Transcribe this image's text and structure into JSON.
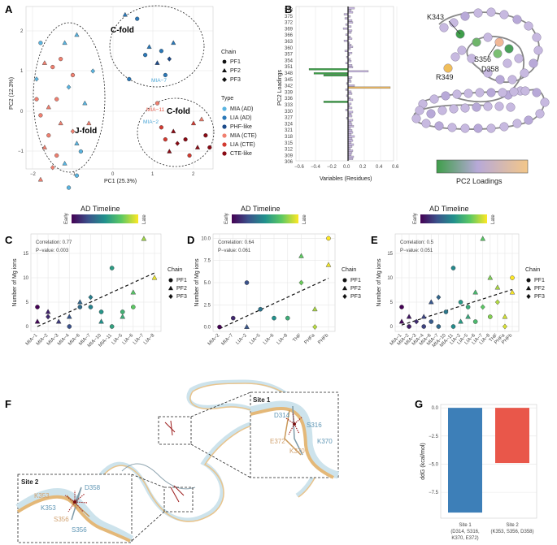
{
  "panel_labels": {
    "A": "A",
    "B": "B",
    "C": "C",
    "D": "D",
    "E": "E",
    "F": "F",
    "G": "G"
  },
  "panelA": {
    "xlabel": "PC1 (25.3%)",
    "ylabel": "PC2 (12.3%)",
    "xticks": [
      "−2",
      "−1",
      "0",
      "1",
      "2"
    ],
    "yticks": [
      "2",
      "1",
      "0",
      "−1"
    ],
    "clusters": [
      {
        "label": "J-fold"
      },
      {
        "label": "C-fold"
      },
      {
        "label": "C-fold"
      }
    ],
    "annotations": [
      {
        "text": "MIA−7",
        "color": "#4ba6d6"
      },
      {
        "text": "MIA−11",
        "color": "#e05a4a"
      },
      {
        "text": "MIA−2",
        "color": "#4ba6d6"
      }
    ],
    "legend_chain_title": "Chain",
    "legend_chain": [
      "PF1",
      "PF2",
      "PF3"
    ],
    "legend_type_title": "Type",
    "legend_type": [
      {
        "label": "MIA (AD)",
        "color": "#5ab4e0"
      },
      {
        "label": "LIA (AD)",
        "color": "#2a78b8"
      },
      {
        "label": "PHF-like",
        "color": "#1c4a8a"
      },
      {
        "label": "MIA (CTE)",
        "color": "#f08070"
      },
      {
        "label": "LIA (CTE)",
        "color": "#d23a30"
      },
      {
        "label": "CTE-like",
        "color": "#8a0a14"
      }
    ]
  },
  "panelB": {
    "ylabel": "PC2 Loadings",
    "xlabel": "Variables (Residues)",
    "xticks": [
      "−0.6",
      "−0.4",
      "−0.2",
      "0.0",
      "0.2",
      "0.4",
      "0.6"
    ],
    "yticks": [
      "378",
      "375",
      "372",
      "369",
      "366",
      "363",
      "360",
      "357",
      "354",
      "351",
      "348",
      "345",
      "342",
      "339",
      "336",
      "333",
      "330",
      "327",
      "324",
      "321",
      "318",
      "315",
      "312",
      "309",
      "306"
    ]
  },
  "structure_labels": [
    "K343",
    "S356",
    "D358",
    "R349"
  ],
  "colorbar_label": "PC2 Loadings",
  "timeline": {
    "title": "AD Timeline",
    "early": "Early",
    "late": "Late"
  },
  "chart_data": [
    {
      "type": "scatter",
      "panel": "C",
      "ylabel": "Number of Mg ions",
      "correlation": "Correlation: 0.77",
      "pvalue": "P−value: 0.003",
      "categories": [
        "MIA−1",
        "MIA−2",
        "MIA−3",
        "MIA−4",
        "MIA−6",
        "MIA−7",
        "MIA−10",
        "MIA−11",
        "LIA−5",
        "LIA−6",
        "LIA−7",
        "LIA−8"
      ],
      "yticks": [
        "0",
        "5",
        "10",
        "15"
      ],
      "ylim": [
        -1,
        19
      ],
      "legend_title": "Chain",
      "legend": [
        "PF1",
        "PF2",
        "PF3"
      ],
      "points": [
        {
          "x": 0,
          "y": 4,
          "s": "c",
          "t": 0.0
        },
        {
          "x": 0,
          "y": 1,
          "s": "t",
          "t": 0.02
        },
        {
          "x": 1,
          "y": 3,
          "s": "t",
          "t": 0.1
        },
        {
          "x": 1,
          "y": 2,
          "s": "d",
          "t": 0.12
        },
        {
          "x": 2,
          "y": 1,
          "s": "t",
          "t": 0.18
        },
        {
          "x": 3,
          "y": 0,
          "s": "c",
          "t": 0.25
        },
        {
          "x": 3,
          "y": 2,
          "s": "t",
          "t": 0.27
        },
        {
          "x": 4,
          "y": 5,
          "s": "t",
          "t": 0.33
        },
        {
          "x": 4,
          "y": 4,
          "s": "c",
          "t": 0.35
        },
        {
          "x": 5,
          "y": 6,
          "s": "d",
          "t": 0.42
        },
        {
          "x": 5,
          "y": 4,
          "s": "c",
          "t": 0.44
        },
        {
          "x": 6,
          "y": 1,
          "s": "t",
          "t": 0.5
        },
        {
          "x": 6,
          "y": 3,
          "s": "c",
          "t": 0.52
        },
        {
          "x": 7,
          "y": 12,
          "s": "c",
          "t": 0.55
        },
        {
          "x": 7,
          "y": 0,
          "s": "c",
          "t": 0.57
        },
        {
          "x": 8,
          "y": 2,
          "s": "t",
          "t": 0.62
        },
        {
          "x": 8,
          "y": 3,
          "s": "c",
          "t": 0.64
        },
        {
          "x": 9,
          "y": 7,
          "s": "t",
          "t": 0.72
        },
        {
          "x": 9,
          "y": 4,
          "s": "c",
          "t": 0.74
        },
        {
          "x": 10,
          "y": 18,
          "s": "t",
          "t": 0.85
        },
        {
          "x": 11,
          "y": 10,
          "s": "t",
          "t": 0.97
        }
      ],
      "trend": [
        [
          0,
          0
        ],
        [
          11,
          11
        ]
      ]
    },
    {
      "type": "scatter",
      "panel": "D",
      "ylabel": "Number of Mg ions",
      "correlation": "Correlation: 0.64",
      "pvalue": "P−value: 0.061",
      "categories": [
        "MIA−2",
        "MIA−7",
        "LIA−2",
        "LIA−5",
        "LIA−6",
        "LIA−8",
        "THF",
        "PHFa",
        "PHFb"
      ],
      "yticks": [
        "0.0",
        "2.5",
        "5.0",
        "7.5",
        "10.0"
      ],
      "ylim": [
        -0.5,
        10.5
      ],
      "legend_title": "Chain",
      "legend": [
        "PF1",
        "PF2",
        "PF3"
      ],
      "points": [
        {
          "x": 0,
          "y": 0,
          "s": "c",
          "t": 0.0
        },
        {
          "x": 1,
          "y": 1,
          "s": "c",
          "t": 0.12
        },
        {
          "x": 2,
          "y": 5,
          "s": "c",
          "t": 0.25
        },
        {
          "x": 2,
          "y": 0,
          "s": "t",
          "t": 0.27
        },
        {
          "x": 3,
          "y": 2,
          "s": "c",
          "t": 0.38
        },
        {
          "x": 4,
          "y": 1,
          "s": "c",
          "t": 0.5
        },
        {
          "x": 5,
          "y": 1,
          "s": "c",
          "t": 0.62
        },
        {
          "x": 6,
          "y": 8,
          "s": "t",
          "t": 0.75
        },
        {
          "x": 6,
          "y": 5,
          "s": "d",
          "t": 0.77
        },
        {
          "x": 7,
          "y": 2,
          "s": "t",
          "t": 0.87
        },
        {
          "x": 7,
          "y": 0,
          "s": "d",
          "t": 0.89
        },
        {
          "x": 8,
          "y": 10,
          "s": "c",
          "t": 1.0
        },
        {
          "x": 8,
          "y": 7,
          "s": "t",
          "t": 0.98
        }
      ],
      "trend": [
        [
          0,
          -0.2
        ],
        [
          8,
          5.5
        ]
      ]
    },
    {
      "type": "scatter",
      "panel": "E",
      "ylabel": "Number of Mg ions",
      "correlation": "Correlation: 0.5",
      "pvalue": "P−value: 0.051",
      "categories": [
        "MIA−1",
        "MIA−2",
        "MIA−3",
        "MIA−4",
        "MIA−6",
        "MIA−7",
        "MIA−10",
        "MIA−11",
        "LIA−2",
        "LIA−5",
        "LIA−6",
        "LIA−7",
        "LIA−8",
        "THF",
        "PHFa",
        "PHFb"
      ],
      "yticks": [
        "0",
        "5",
        "10",
        "15"
      ],
      "ylim": [
        -1,
        19
      ],
      "legend_title": "Chain",
      "legend": [
        "PF1",
        "PF2",
        "PF3"
      ],
      "points": [
        {
          "x": 0,
          "y": 4,
          "s": "c",
          "t": 0.0
        },
        {
          "x": 0,
          "y": 1,
          "s": "t",
          "t": 0.02
        },
        {
          "x": 1,
          "y": 2,
          "s": "t",
          "t": 0.07
        },
        {
          "x": 1,
          "y": 0,
          "s": "c",
          "t": 0.08
        },
        {
          "x": 2,
          "y": 1,
          "s": "d",
          "t": 0.13
        },
        {
          "x": 3,
          "y": 0,
          "s": "c",
          "t": 0.2
        },
        {
          "x": 3,
          "y": 2,
          "s": "t",
          "t": 0.21
        },
        {
          "x": 4,
          "y": 5,
          "s": "t",
          "t": 0.27
        },
        {
          "x": 4,
          "y": 1,
          "s": "c",
          "t": 0.28
        },
        {
          "x": 5,
          "y": 6,
          "s": "d",
          "t": 0.33
        },
        {
          "x": 5,
          "y": 0,
          "s": "c",
          "t": 0.34
        },
        {
          "x": 6,
          "y": 3,
          "s": "c",
          "t": 0.4
        },
        {
          "x": 7,
          "y": 12,
          "s": "c",
          "t": 0.47
        },
        {
          "x": 7,
          "y": 0,
          "s": "c",
          "t": 0.48
        },
        {
          "x": 8,
          "y": 5,
          "s": "c",
          "t": 0.53
        },
        {
          "x": 8,
          "y": 1,
          "s": "t",
          "t": 0.54
        },
        {
          "x": 9,
          "y": 2,
          "s": "t",
          "t": 0.6
        },
        {
          "x": 9,
          "y": 4,
          "s": "c",
          "t": 0.61
        },
        {
          "x": 10,
          "y": 7,
          "s": "t",
          "t": 0.67
        },
        {
          "x": 10,
          "y": 1,
          "s": "c",
          "t": 0.68
        },
        {
          "x": 11,
          "y": 18,
          "s": "t",
          "t": 0.73
        },
        {
          "x": 11,
          "y": 4,
          "s": "d",
          "t": 0.74
        },
        {
          "x": 12,
          "y": 10,
          "s": "t",
          "t": 0.8
        },
        {
          "x": 12,
          "y": 2,
          "s": "c",
          "t": 0.81
        },
        {
          "x": 13,
          "y": 8,
          "s": "t",
          "t": 0.87
        },
        {
          "x": 13,
          "y": 5,
          "s": "d",
          "t": 0.88
        },
        {
          "x": 14,
          "y": 2,
          "s": "t",
          "t": 0.93
        },
        {
          "x": 14,
          "y": 0,
          "s": "d",
          "t": 0.94
        },
        {
          "x": 15,
          "y": 10,
          "s": "c",
          "t": 1.0
        },
        {
          "x": 15,
          "y": 7,
          "s": "t",
          "t": 0.99
        }
      ],
      "trend": [
        [
          0,
          0.3
        ],
        [
          15,
          7.6
        ]
      ]
    },
    {
      "type": "bar",
      "panel": "G",
      "ylabel": "ddG (kcal/mol)",
      "yticks": [
        "0.0",
        "−2.5",
        "−5.0",
        "−7.5"
      ],
      "ylim": [
        -9.8,
        0.3
      ],
      "categories": [
        {
          "name": "Site 1",
          "detail1": "(D314, S316,",
          "detail2": "K370, E372)"
        },
        {
          "name": "Site 2",
          "detail1": "(K353, S356, D358)",
          "detail2": ""
        }
      ],
      "values": [
        -9.3,
        -4.9
      ],
      "colors": [
        "#3d7fb8",
        "#e9574a"
      ]
    }
  ],
  "panelF": {
    "site1": {
      "title": "Site 1",
      "labels": [
        {
          "t": "D314",
          "c": "#5f96b5"
        },
        {
          "t": "S316",
          "c": "#5f96b5"
        },
        {
          "t": "E372",
          "c": "#d1a270"
        },
        {
          "t": "K370",
          "c": "#d1a270"
        },
        {
          "t": "K370",
          "c": "#5f96b5"
        }
      ]
    },
    "site2": {
      "title": "Site 2",
      "labels": [
        {
          "t": "K353",
          "c": "#d1a270"
        },
        {
          "t": "D358",
          "c": "#5f96b5"
        },
        {
          "t": "K353",
          "c": "#5f96b5"
        },
        {
          "t": "S356",
          "c": "#d1a270"
        },
        {
          "t": "S356",
          "c": "#5f96b5"
        }
      ]
    }
  }
}
